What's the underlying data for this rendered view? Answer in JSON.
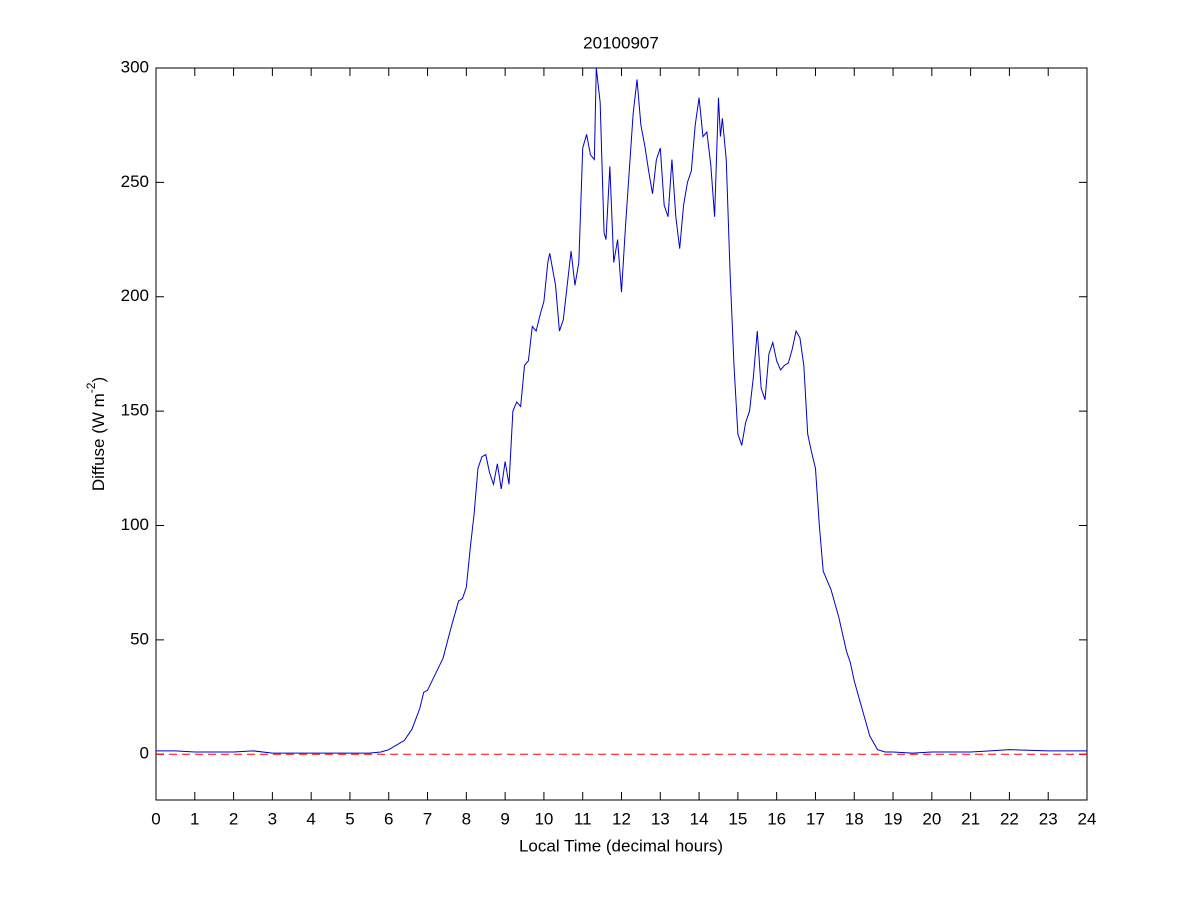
{
  "chart_data": {
    "type": "line",
    "title": "20100907",
    "x_label": "Local Time (decimal hours)",
    "y_label": [
      "Diffuse (W m",
      "-2",
      ")"
    ],
    "x": [
      0,
      0.5,
      1,
      2,
      2.5,
      3,
      4,
      5,
      5.5,
      5.8,
      6,
      6.2,
      6.4,
      6.6,
      6.8,
      6.9,
      7,
      7.2,
      7.4,
      7.6,
      7.8,
      7.9,
      8,
      8.1,
      8.2,
      8.3,
      8.4,
      8.5,
      8.6,
      8.7,
      8.8,
      8.9,
      9,
      9.1,
      9.2,
      9.3,
      9.4,
      9.5,
      9.6,
      9.7,
      9.8,
      9.9,
      10,
      10.1,
      10.15,
      10.3,
      10.4,
      10.5,
      10.6,
      10.7,
      10.8,
      10.9,
      11,
      11.1,
      11.2,
      11.3,
      11.35,
      11.45,
      11.55,
      11.6,
      11.7,
      11.8,
      11.9,
      12,
      12.1,
      12.3,
      12.4,
      12.5,
      12.6,
      12.7,
      12.8,
      12.9,
      13,
      13.1,
      13.2,
      13.3,
      13.4,
      13.5,
      13.6,
      13.7,
      13.8,
      13.9,
      14,
      14.1,
      14.2,
      14.3,
      14.4,
      14.5,
      14.55,
      14.6,
      14.7,
      14.8,
      14.9,
      15,
      15.1,
      15.2,
      15.3,
      15.4,
      15.5,
      15.6,
      15.7,
      15.8,
      15.9,
      16,
      16.1,
      16.2,
      16.3,
      16.4,
      16.5,
      16.6,
      16.7,
      16.8,
      16.9,
      17,
      17.1,
      17.2,
      17.3,
      17.4,
      17.6,
      17.8,
      17.9,
      18,
      18.2,
      18.4,
      18.6,
      18.8,
      19,
      19.5,
      20,
      21,
      21.5,
      22,
      23,
      24
    ],
    "series": [
      {
        "color": "#0000cc",
        "values": [
          1.5,
          1.5,
          1,
          1,
          1.5,
          0.5,
          0.5,
          0.5,
          0.5,
          1,
          2,
          4,
          6,
          11,
          20,
          27,
          28,
          35,
          42,
          55,
          67,
          68,
          73,
          90,
          105,
          125,
          130,
          131,
          123,
          118,
          127,
          116,
          128,
          118,
          150,
          154,
          152,
          170,
          172,
          187,
          185,
          192,
          198,
          215,
          219,
          205,
          185,
          190,
          205,
          220,
          205,
          215,
          265,
          271,
          262,
          260,
          300,
          285,
          228,
          225,
          257,
          215,
          225,
          202,
          230,
          280,
          295,
          275,
          266,
          255,
          245,
          260,
          265,
          240,
          235,
          260,
          235,
          221,
          240,
          250,
          255,
          275,
          287,
          270,
          272,
          258,
          235,
          287,
          270,
          278,
          260,
          210,
          170,
          140,
          135,
          145,
          150,
          165,
          185,
          160,
          155,
          175,
          180,
          172,
          168,
          170,
          171,
          177,
          185,
          182,
          170,
          140,
          132,
          125,
          100,
          80,
          76,
          72,
          60,
          45,
          40,
          32,
          20,
          8,
          2,
          1,
          1,
          0.5,
          1,
          1,
          1.5,
          2,
          1.5,
          1.5
        ]
      }
    ],
    "reference_line": {
      "value": 0,
      "color": "#ff0000",
      "style": "dashed"
    },
    "xlim": [
      0,
      24
    ],
    "xticks": [
      0,
      1,
      2,
      3,
      4,
      5,
      6,
      7,
      8,
      9,
      10,
      11,
      12,
      13,
      14,
      15,
      16,
      17,
      18,
      19,
      20,
      21,
      22,
      23,
      24
    ],
    "ylim": [
      -20,
      300
    ],
    "yticks": [
      0,
      50,
      100,
      150,
      200,
      250,
      300
    ]
  }
}
